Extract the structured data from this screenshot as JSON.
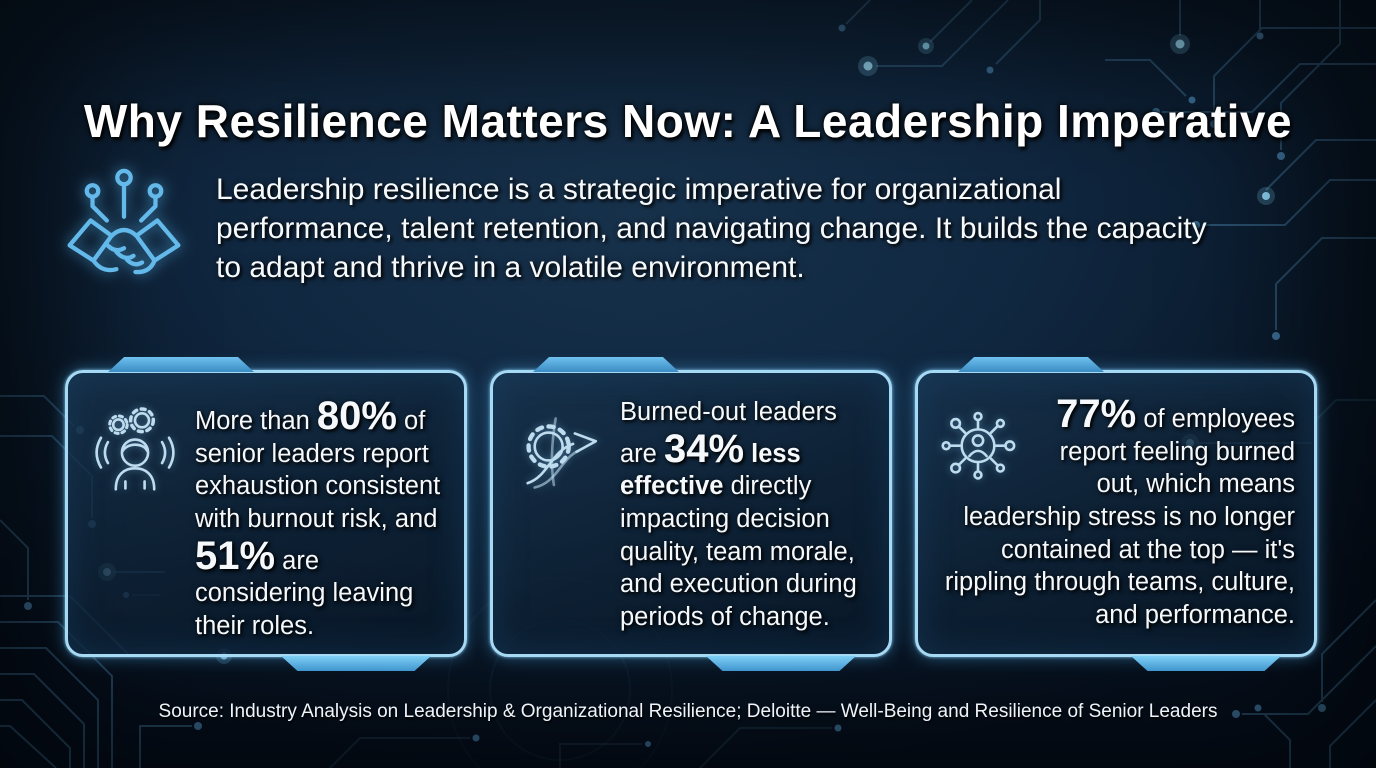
{
  "slide": {
    "title": "Why Resilience Matters Now: A Leadership Imperative",
    "intro": {
      "icon": "handshake-circuit-icon",
      "text": "Leadership resilience is a strategic imperative for organizational performance, talent retention, and navigating change. It builds the capacity to adapt and thrive in a volatile environment."
    },
    "source": "Source: Industry Analysis on Leadership & Organizational Resilience; Deloitte — Well-Being and Resilience of Senior Leaders"
  },
  "cards": [
    {
      "id": "senior-leaders-burnout",
      "icon": "stressed-leader-icon",
      "align": "left",
      "stats": [
        "80%",
        "51%"
      ],
      "segments": [
        {
          "text": "More than ",
          "style": "normal"
        },
        {
          "text": "80%",
          "style": "stat"
        },
        {
          "text": " of senior leaders report exhaustion consistent with burnout risk, and ",
          "style": "normal"
        },
        {
          "text": "51%",
          "style": "stat"
        },
        {
          "text": " are considering leaving their roles.",
          "style": "normal"
        }
      ]
    },
    {
      "id": "burned-out-leader-effectiveness",
      "icon": "declining-gear-arrow-icon",
      "align": "left",
      "stats": [
        "34%"
      ],
      "segments": [
        {
          "text": "Burned-out leaders are ",
          "style": "normal"
        },
        {
          "text": "34%",
          "style": "stat"
        },
        {
          "text": " ",
          "style": "normal"
        },
        {
          "text": "less effective",
          "style": "bold"
        },
        {
          "text": " directly impacting decision quality, team morale, and execution during periods of change.",
          "style": "normal"
        }
      ]
    },
    {
      "id": "employee-burnout-ripple",
      "icon": "network-spread-icon",
      "align": "right",
      "stats": [
        "77%"
      ],
      "segments": [
        {
          "text": "77%",
          "style": "stat"
        },
        {
          "text": " of employees report feeling burned out, which means leadership stress is no longer contained at the top — it's rippling through teams, culture, and performance.",
          "style": "normal"
        }
      ]
    }
  ],
  "colors": {
    "background": "#0e2236",
    "accent_blue": "#5fb6e8",
    "card_border": "#a6d9f4",
    "circuit_line": "#2f5878",
    "glow_dot": "#8fd8f8",
    "text": "#ffffff"
  }
}
